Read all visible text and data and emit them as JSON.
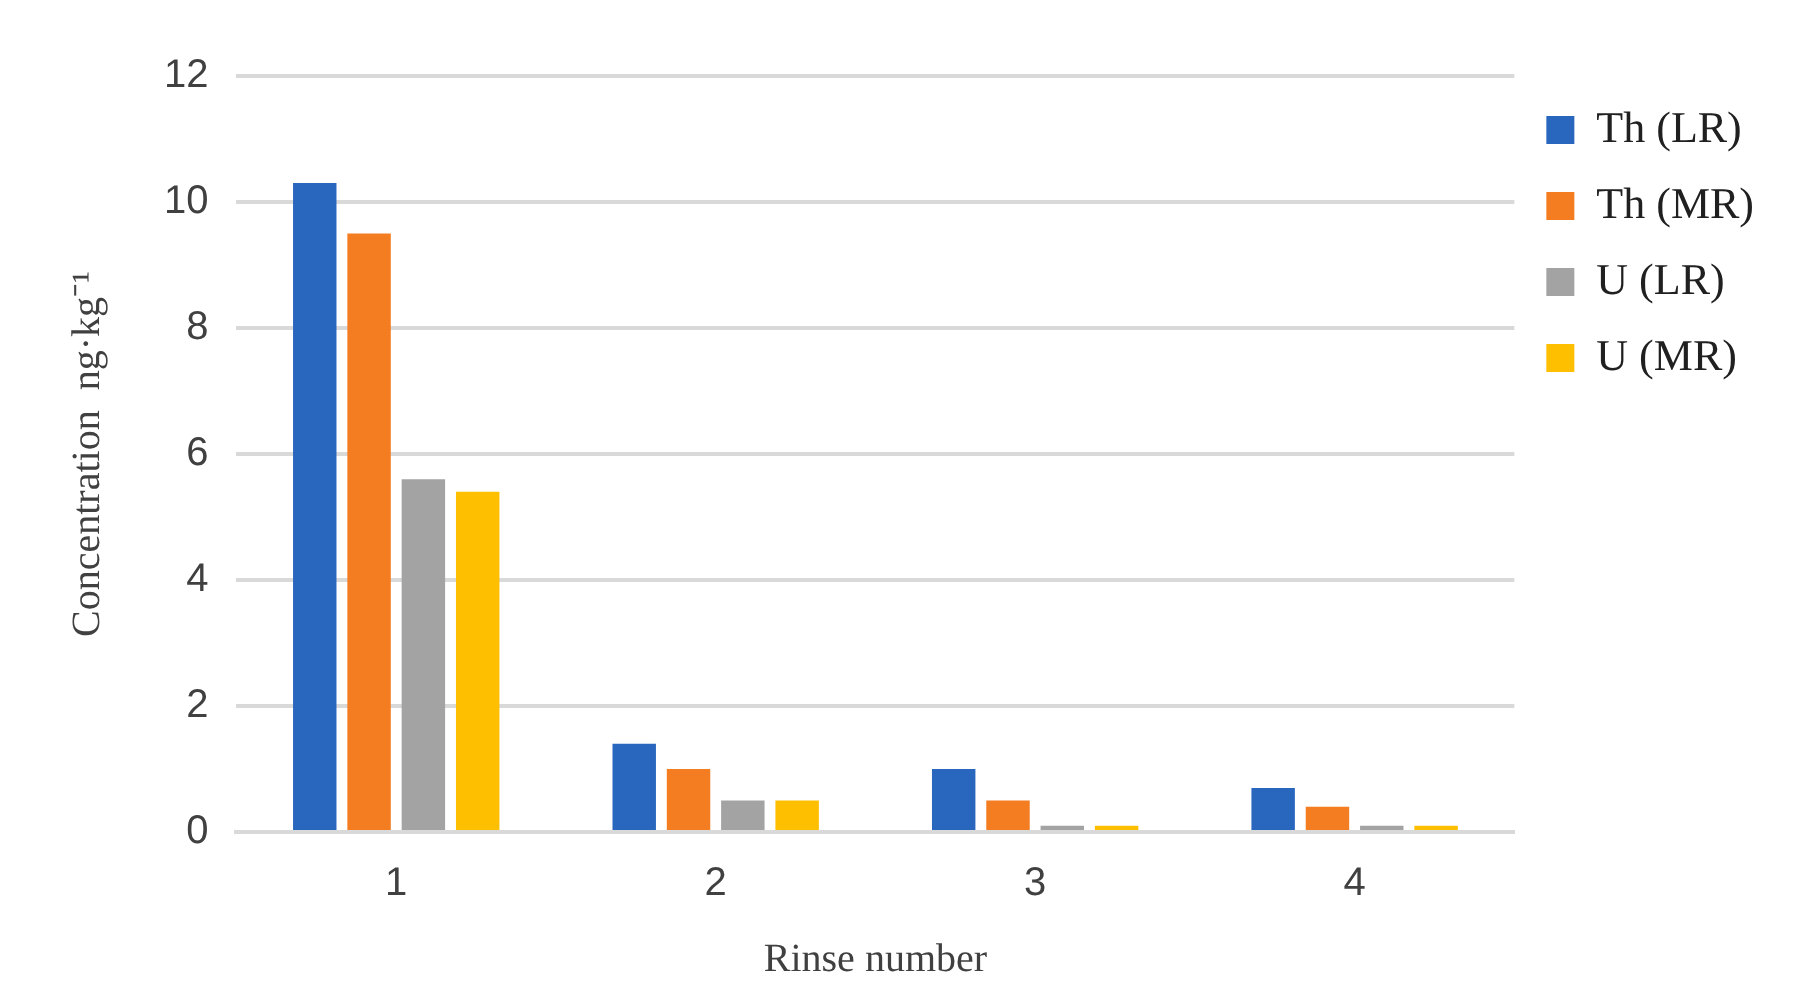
{
  "chart_data": {
    "type": "bar",
    "xlabel": "Rinse number",
    "ylabel": "Concentration  ng·kg⁻¹",
    "categories": [
      "1",
      "2",
      "3",
      "4"
    ],
    "series": [
      {
        "name": "Th (LR)",
        "color": "#2966be",
        "values": [
          10.3,
          1.4,
          1.0,
          0.7
        ]
      },
      {
        "name": "Th (MR)",
        "color": "#f47d22",
        "values": [
          9.5,
          1.0,
          0.5,
          0.4
        ]
      },
      {
        "name": "U (LR)",
        "color": "#a3a3a3",
        "values": [
          5.6,
          0.5,
          0.1,
          0.1
        ]
      },
      {
        "name": "U (MR)",
        "color": "#fdbf00",
        "values": [
          5.4,
          0.5,
          0.1,
          0.1
        ]
      }
    ],
    "ylim": [
      0,
      12
    ],
    "yticks": [
      0,
      2,
      4,
      6,
      8,
      10,
      12
    ],
    "grid": "y",
    "legend": "right"
  }
}
